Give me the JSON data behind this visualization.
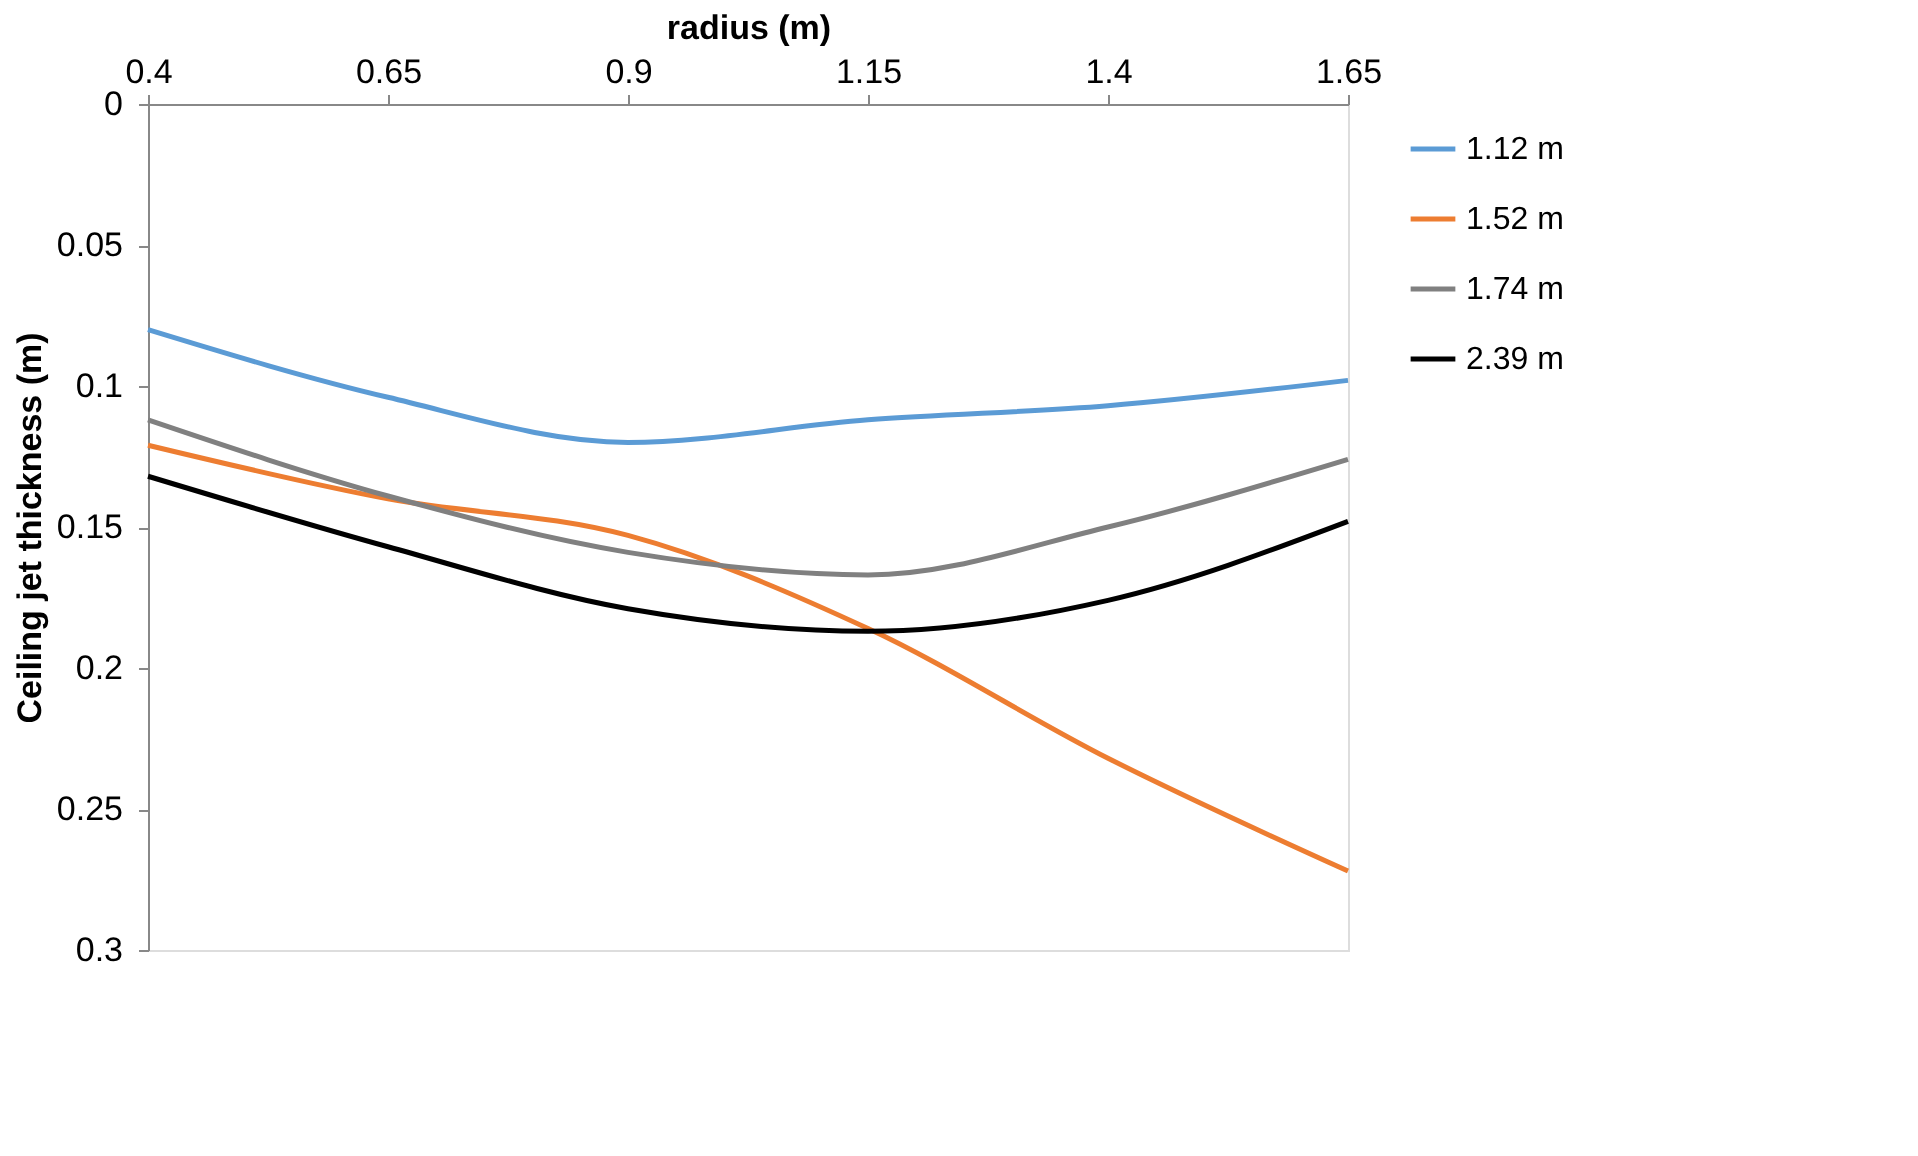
{
  "chart_data": {
    "type": "line",
    "xlabel": "radius (m)",
    "ylabel": "Ceiling jet thickness (m)",
    "x": [
      0.4,
      0.65,
      0.9,
      1.15,
      1.4,
      1.65
    ],
    "xlim": [
      0.4,
      1.65
    ],
    "xticks": [
      0.4,
      0.65,
      0.9,
      1.15,
      1.4,
      1.65
    ],
    "ylim": [
      0.3,
      0
    ],
    "yticks": [
      0,
      0.05,
      0.1,
      0.15,
      0.2,
      0.25,
      0.3
    ],
    "grid": false,
    "legend": "right",
    "marker": "none",
    "line_style": "solid",
    "series": [
      {
        "name": "1.12 m",
        "color": "#5b9bd5",
        "values": [
          0.08,
          0.104,
          0.12,
          0.112,
          0.107,
          0.098
        ]
      },
      {
        "name": "1.52 m",
        "color": "#ed7d31",
        "values": [
          0.121,
          0.14,
          0.153,
          0.186,
          0.232,
          0.272
        ]
      },
      {
        "name": "1.74 m",
        "color": "#808080",
        "values": [
          0.112,
          0.139,
          0.159,
          0.167,
          0.15,
          0.126
        ]
      },
      {
        "name": "2.39 m",
        "color": "#000000",
        "values": [
          0.132,
          0.157,
          0.179,
          0.187,
          0.176,
          0.148
        ]
      }
    ]
  }
}
